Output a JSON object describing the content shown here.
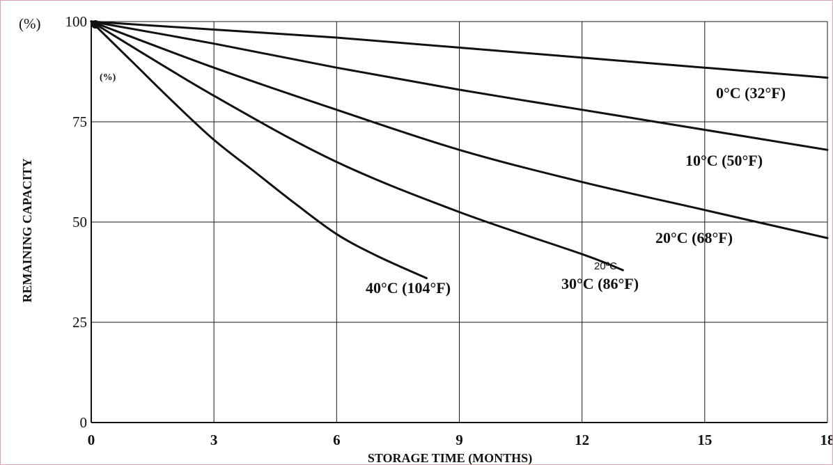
{
  "chart_data": {
    "type": "line",
    "title": "",
    "xlabel": "STORAGE TIME (MONTHS)",
    "ylabel": "REMAINING CAPACITY",
    "y_unit_top": "(%)",
    "y_unit_inner": "(%)",
    "xlim": [
      0,
      18
    ],
    "ylim": [
      0,
      100
    ],
    "x_ticks": [
      0,
      3,
      6,
      9,
      12,
      15,
      18
    ],
    "y_ticks": [
      0,
      25,
      50,
      75,
      100
    ],
    "x_tick_labels": [
      "0",
      "3",
      "6",
      "9",
      "12",
      "15",
      "18"
    ],
    "y_tick_labels": [
      "0",
      "25",
      "50",
      "75",
      "100"
    ],
    "grid": true,
    "legend": "none",
    "series": [
      {
        "name": "0°C (32°F)",
        "x": [
          0,
          3,
          6,
          9,
          12,
          15,
          18
        ],
        "y": [
          100,
          98,
          96,
          93.5,
          91,
          88.5,
          86
        ]
      },
      {
        "name": "10°C (50°F)",
        "x": [
          0,
          3,
          6,
          9,
          12,
          15,
          18
        ],
        "y": [
          100,
          94.5,
          88.5,
          83,
          78,
          73,
          68
        ]
      },
      {
        "name": "20°C (68°F)",
        "x": [
          0,
          3,
          6,
          9,
          12,
          15,
          18
        ],
        "y": [
          100,
          88.5,
          78,
          68,
          60,
          53,
          46
        ]
      },
      {
        "name": "30°C (86°F)",
        "x": [
          0,
          3,
          6,
          9,
          12,
          13
        ],
        "y": [
          100,
          81.5,
          65,
          52.5,
          42,
          38
        ]
      },
      {
        "name": "40°C (104°F)",
        "x": [
          0,
          1,
          2,
          3,
          4,
          5,
          6,
          7,
          8.2
        ],
        "y": [
          100,
          90,
          80,
          70.5,
          62.5,
          54.5,
          47,
          41.5,
          36
        ]
      }
    ],
    "annotations": [
      "20ºC"
    ]
  }
}
